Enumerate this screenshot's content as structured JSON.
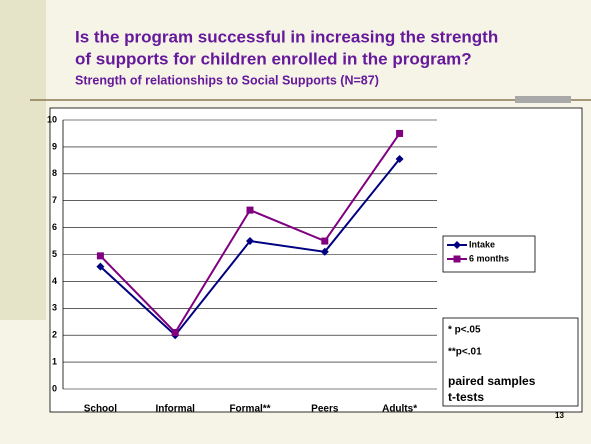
{
  "chart_data": {
    "type": "line",
    "title": [
      "Is the program successful in increasing the strength",
      "of supports for children enrolled in the program?"
    ],
    "subtitle": "Strength of relationships to Social Supports (N=87)",
    "categories": [
      "School",
      "Informal",
      "Formal**",
      "Peers",
      "Adults*"
    ],
    "series": [
      {
        "name": "Intake",
        "color": "#000080",
        "marker": "diamond",
        "values": [
          4.55,
          2.0,
          5.5,
          5.1,
          8.55
        ]
      },
      {
        "name": "6 months",
        "color": "#800080",
        "marker": "square",
        "values": [
          4.95,
          2.1,
          6.65,
          5.5,
          9.5
        ]
      }
    ],
    "ylim": [
      0,
      10
    ],
    "yticks": [
      0,
      1,
      2,
      3,
      4,
      5,
      6,
      7,
      8,
      9,
      10
    ],
    "grid": true,
    "legend": "right",
    "notes": [
      "* p<.05",
      "**p<.01",
      "paired samples",
      "t-tests"
    ],
    "page_number": "13"
  }
}
